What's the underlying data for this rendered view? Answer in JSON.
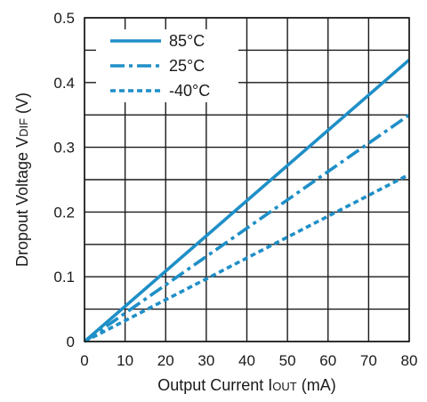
{
  "chart_data": {
    "type": "line",
    "xlabel_main": "Output Current I",
    "xlabel_sub": "OUT",
    "xlabel_unit": " (mA)",
    "ylabel_main": "Dropout Voltage V",
    "ylabel_sub": "DIF",
    "ylabel_unit": " (V)",
    "xlim": [
      0,
      80
    ],
    "ylim": [
      0,
      0.5
    ],
    "x_ticks": [
      "0",
      "10",
      "20",
      "30",
      "40",
      "50",
      "60",
      "70",
      "80"
    ],
    "y_ticks": [
      "0",
      "0.1",
      "0.2",
      "0.3",
      "0.4",
      "0.5"
    ],
    "grid": true,
    "legend_position": "top-left",
    "series_color": "#1f8fc7",
    "series": [
      {
        "name": "85°C",
        "style": "solid",
        "x": [
          0,
          80
        ],
        "y": [
          0,
          0.435
        ]
      },
      {
        "name": "25°C",
        "style": "dash-dot",
        "x": [
          0,
          80
        ],
        "y": [
          0,
          0.35
        ]
      },
      {
        "name": "-40°C",
        "style": "dotted",
        "x": [
          0,
          80
        ],
        "y": [
          0,
          0.258
        ]
      }
    ]
  }
}
